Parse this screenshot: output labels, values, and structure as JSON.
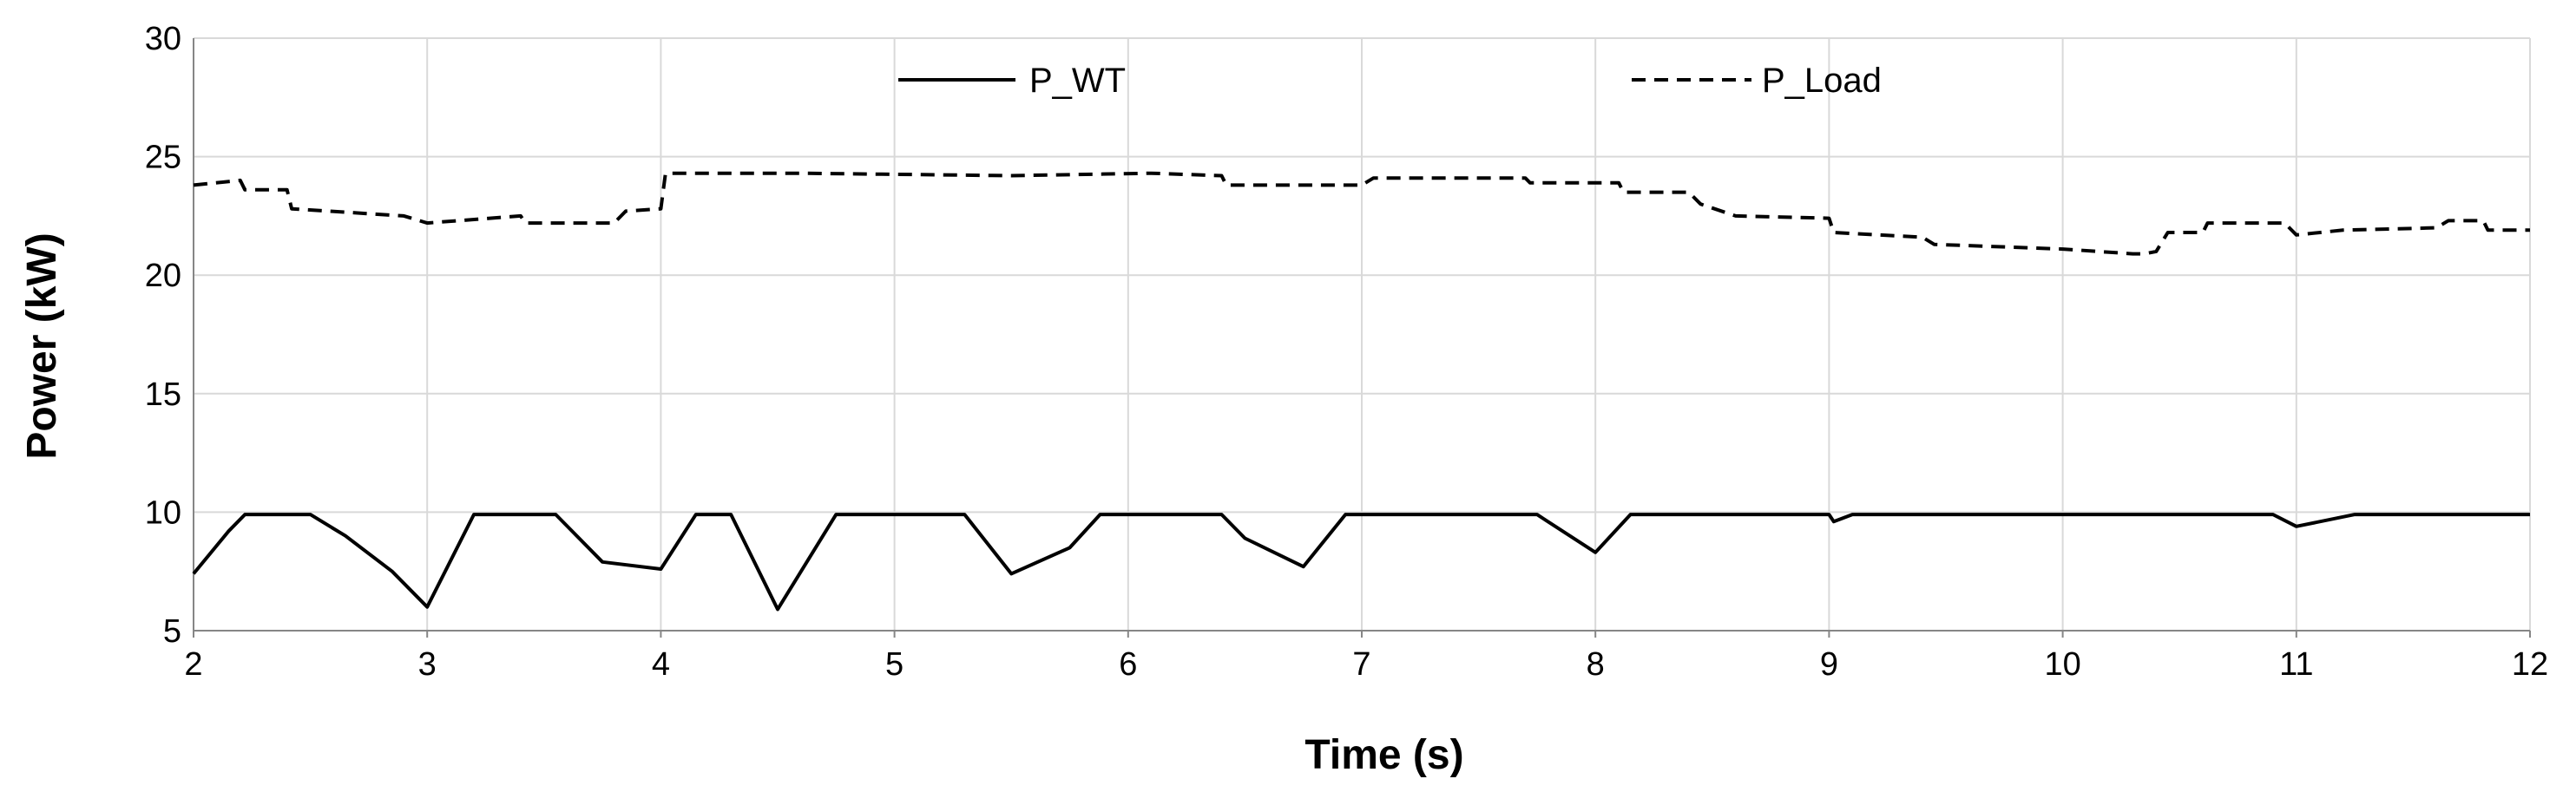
{
  "chart_data": {
    "type": "line",
    "title": "",
    "xlabel": "Time (s)",
    "ylabel": "Power (kW)",
    "xlim": [
      2,
      12
    ],
    "ylim": [
      5,
      30
    ],
    "xticks": [
      2,
      3,
      4,
      5,
      6,
      7,
      8,
      9,
      10,
      11,
      12
    ],
    "yticks": [
      5,
      10,
      15,
      20,
      25,
      30
    ],
    "grid": true,
    "legend_position": "top-center",
    "series": [
      {
        "name": "P_WT",
        "style": "solid",
        "color": "#000000",
        "x": [
          2.0,
          2.15,
          2.22,
          2.5,
          2.65,
          2.85,
          3.0,
          3.2,
          3.55,
          3.75,
          4.0,
          4.15,
          4.3,
          4.5,
          4.75,
          5.3,
          5.5,
          5.75,
          5.88,
          6.4,
          6.5,
          6.75,
          6.93,
          7.75,
          8.0,
          8.15,
          9.0,
          9.02,
          9.1,
          10.9,
          11.0,
          11.25,
          12.0
        ],
        "y": [
          7.4,
          9.2,
          9.9,
          9.9,
          9.0,
          7.5,
          6.0,
          9.9,
          9.9,
          7.9,
          7.6,
          9.9,
          9.9,
          5.9,
          9.9,
          9.9,
          7.4,
          8.5,
          9.9,
          9.9,
          8.9,
          7.7,
          9.9,
          9.9,
          8.3,
          9.9,
          9.9,
          9.6,
          9.9,
          9.9,
          9.4,
          9.9,
          9.9
        ]
      },
      {
        "name": "P_Load",
        "style": "dashed",
        "color": "#000000",
        "x": [
          2.0,
          2.2,
          2.22,
          2.4,
          2.42,
          2.9,
          3.0,
          3.4,
          3.42,
          3.8,
          3.85,
          4.0,
          4.02,
          4.6,
          5.5,
          6.1,
          6.4,
          6.42,
          7.0,
          7.05,
          7.7,
          7.72,
          8.1,
          8.12,
          8.4,
          8.45,
          8.6,
          9.0,
          9.02,
          9.4,
          9.45,
          10.0,
          10.3,
          10.35,
          10.4,
          10.45,
          10.6,
          10.62,
          10.95,
          11.0,
          11.2,
          11.6,
          11.65,
          11.8,
          11.82,
          12.0
        ],
        "y": [
          23.8,
          24.0,
          23.6,
          23.6,
          22.8,
          22.5,
          22.2,
          22.5,
          22.2,
          22.2,
          22.7,
          22.8,
          24.3,
          24.3,
          24.2,
          24.3,
          24.2,
          23.8,
          23.8,
          24.1,
          24.1,
          23.9,
          23.9,
          23.5,
          23.5,
          23.0,
          22.5,
          22.4,
          21.8,
          21.6,
          21.3,
          21.1,
          20.9,
          20.9,
          21.0,
          21.8,
          21.8,
          22.2,
          22.2,
          21.7,
          21.9,
          22.0,
          22.3,
          22.3,
          21.9,
          21.9
        ]
      }
    ]
  }
}
